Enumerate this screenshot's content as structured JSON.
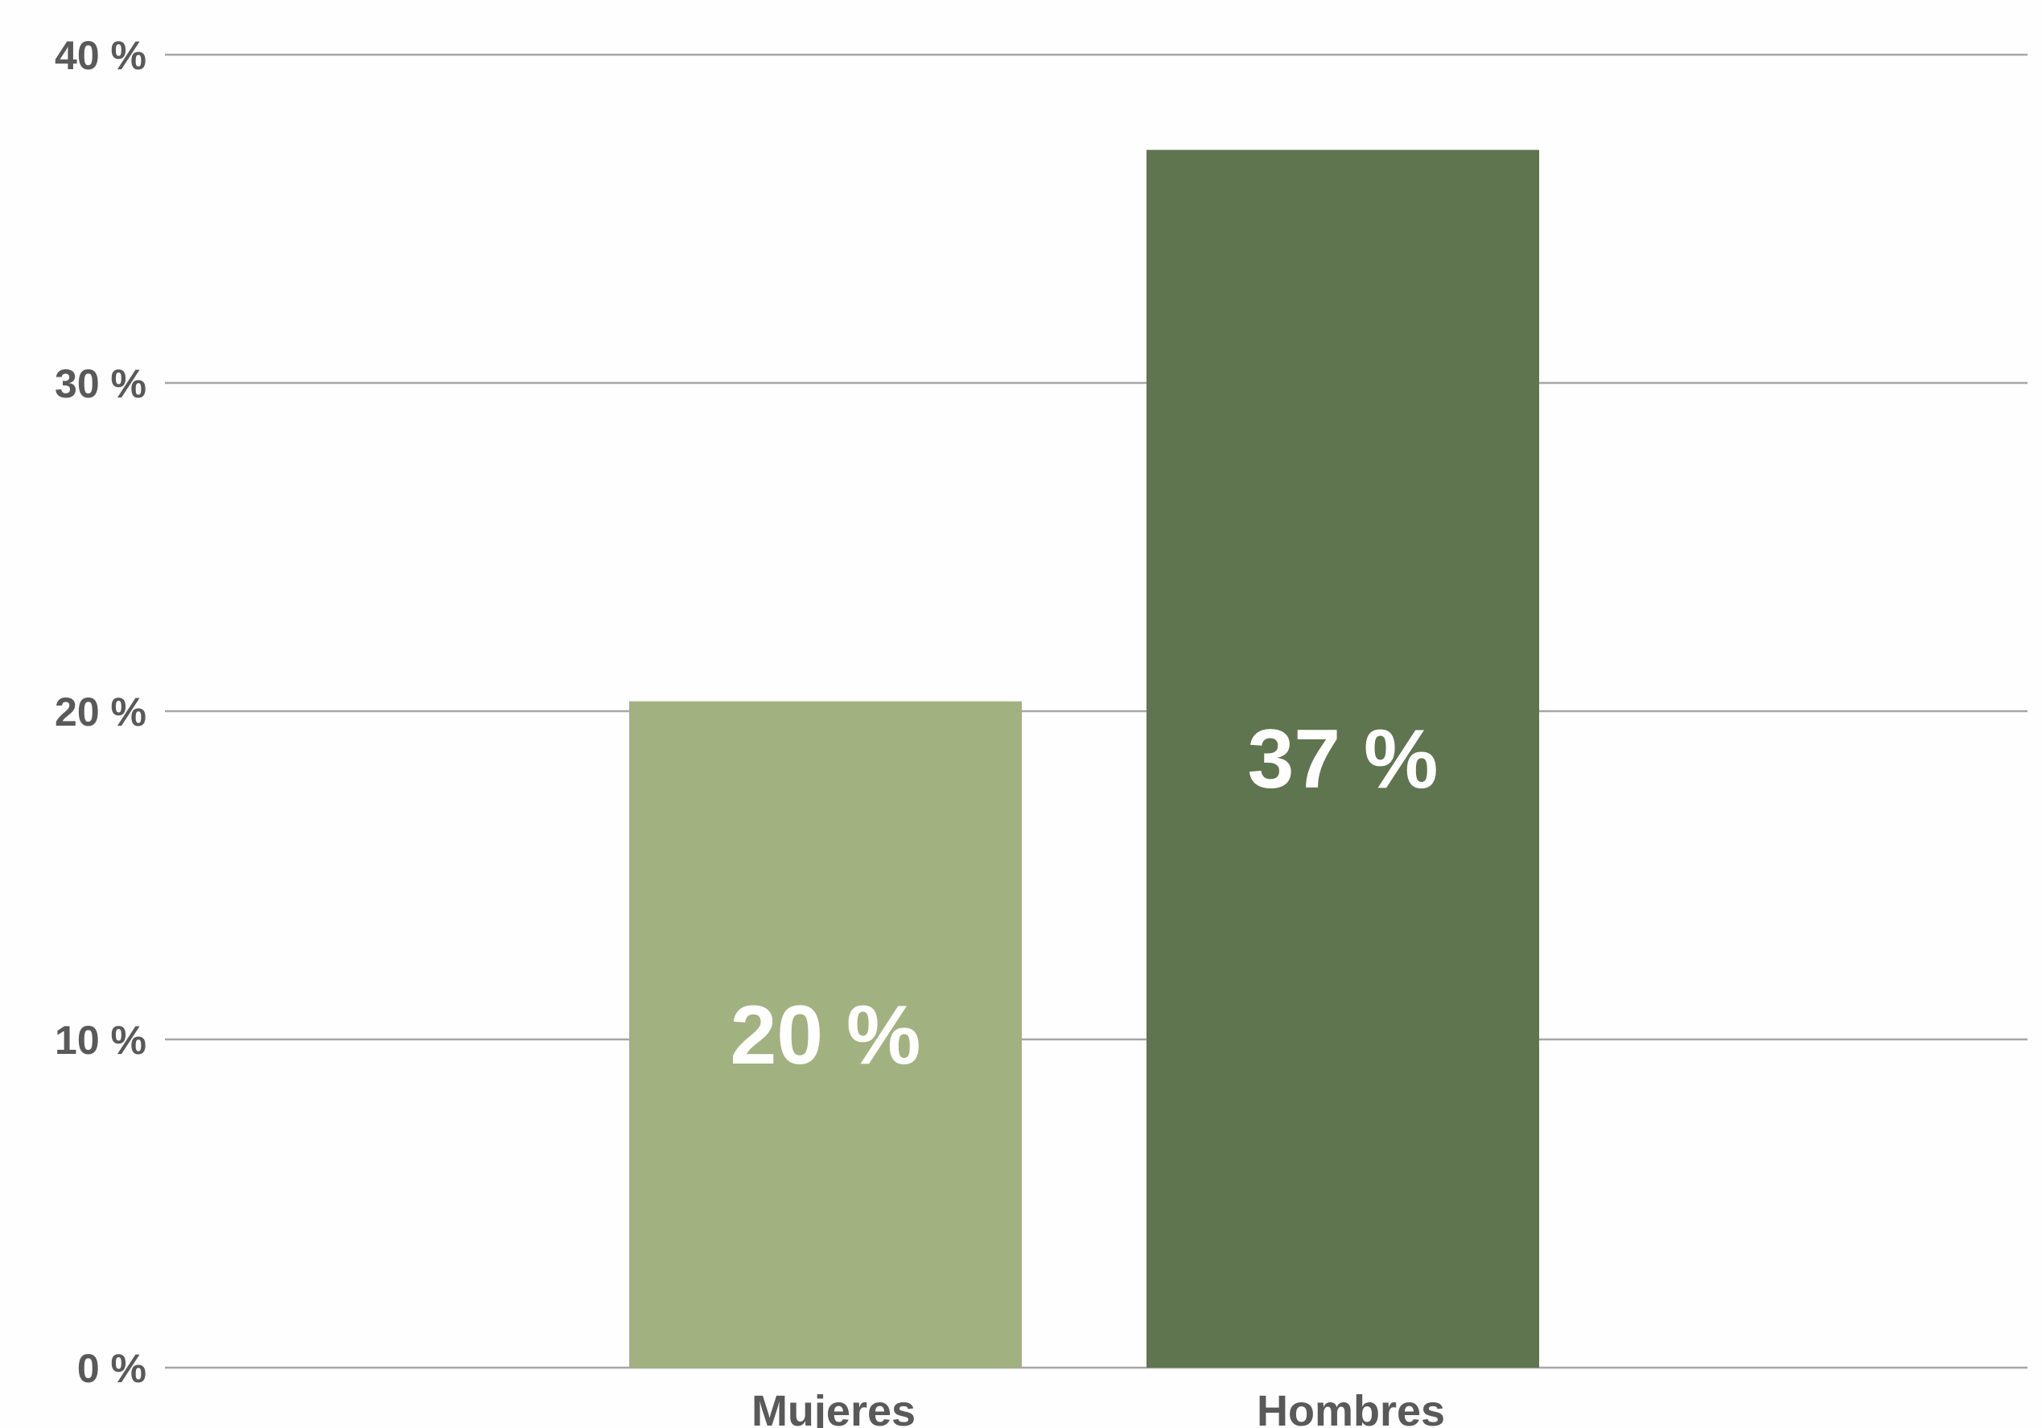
{
  "chart_data": {
    "type": "bar",
    "categories": [
      "Mujeres",
      "Hombres"
    ],
    "values": [
      20.3,
      37.1
    ],
    "data_labels": [
      "20 %",
      "37 %"
    ],
    "colors": [
      "#a2b180",
      "#5e754f"
    ],
    "ylim": [
      0,
      40
    ],
    "yticks": [
      0,
      10,
      20,
      30,
      40
    ],
    "ytick_labels": [
      "0 %",
      "10 %",
      "20 %",
      "30 %",
      "40 %"
    ],
    "title": "",
    "xlabel": "",
    "ylabel": "",
    "grid": true,
    "legend": "none"
  }
}
